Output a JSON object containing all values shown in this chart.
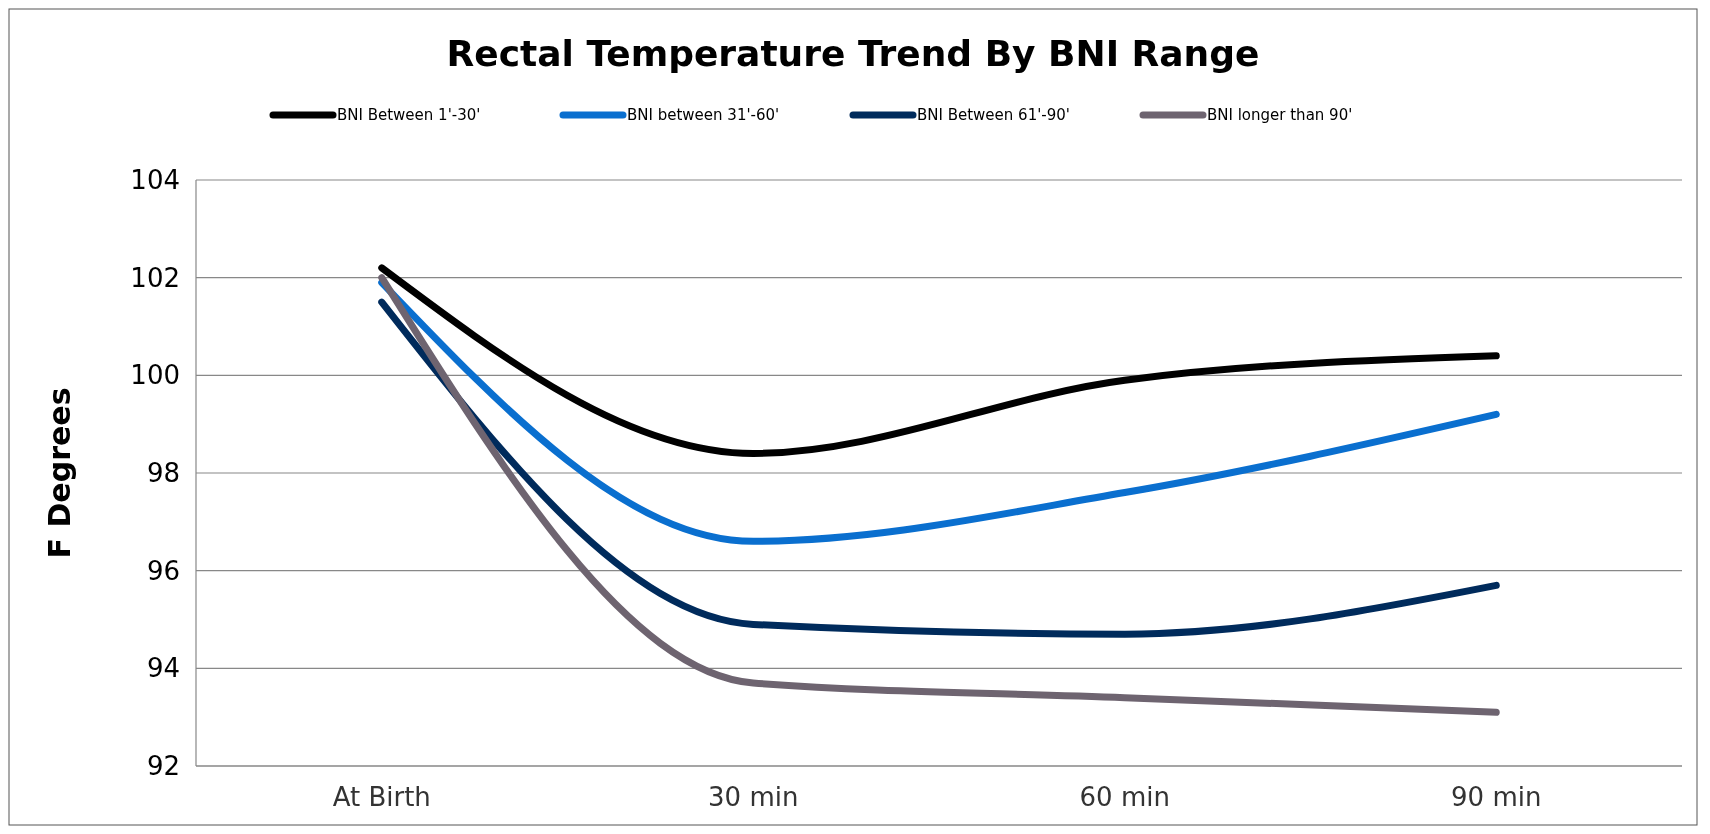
{
  "chart_data": {
    "type": "line",
    "title": "Rectal Temperature Trend By BNI Range",
    "ylabel": "F Degrees",
    "categories": [
      "At Birth",
      "30 min",
      "60 min",
      "90 min"
    ],
    "series": [
      {
        "name": "BNI Between 1'-30'",
        "color": "#000000",
        "values": [
          102.2,
          98.4,
          99.9,
          100.4
        ]
      },
      {
        "name": "BNI between 31'-60'",
        "color": "#0a6fcf",
        "values": [
          101.9,
          96.6,
          97.6,
          99.2
        ]
      },
      {
        "name": "BNI Between 61'-90'",
        "color": "#002b5c",
        "values": [
          101.5,
          94.9,
          94.7,
          95.7
        ]
      },
      {
        "name": "BNI longer than  90'",
        "color": "#6e6470",
        "values": [
          102.0,
          93.7,
          93.4,
          93.1
        ]
      }
    ],
    "ylim": [
      92,
      104
    ],
    "yticks": [
      92,
      94,
      96,
      98,
      100,
      102,
      104
    ],
    "grid": "y",
    "legend": "top",
    "marker": "none",
    "line_style": "solid"
  }
}
